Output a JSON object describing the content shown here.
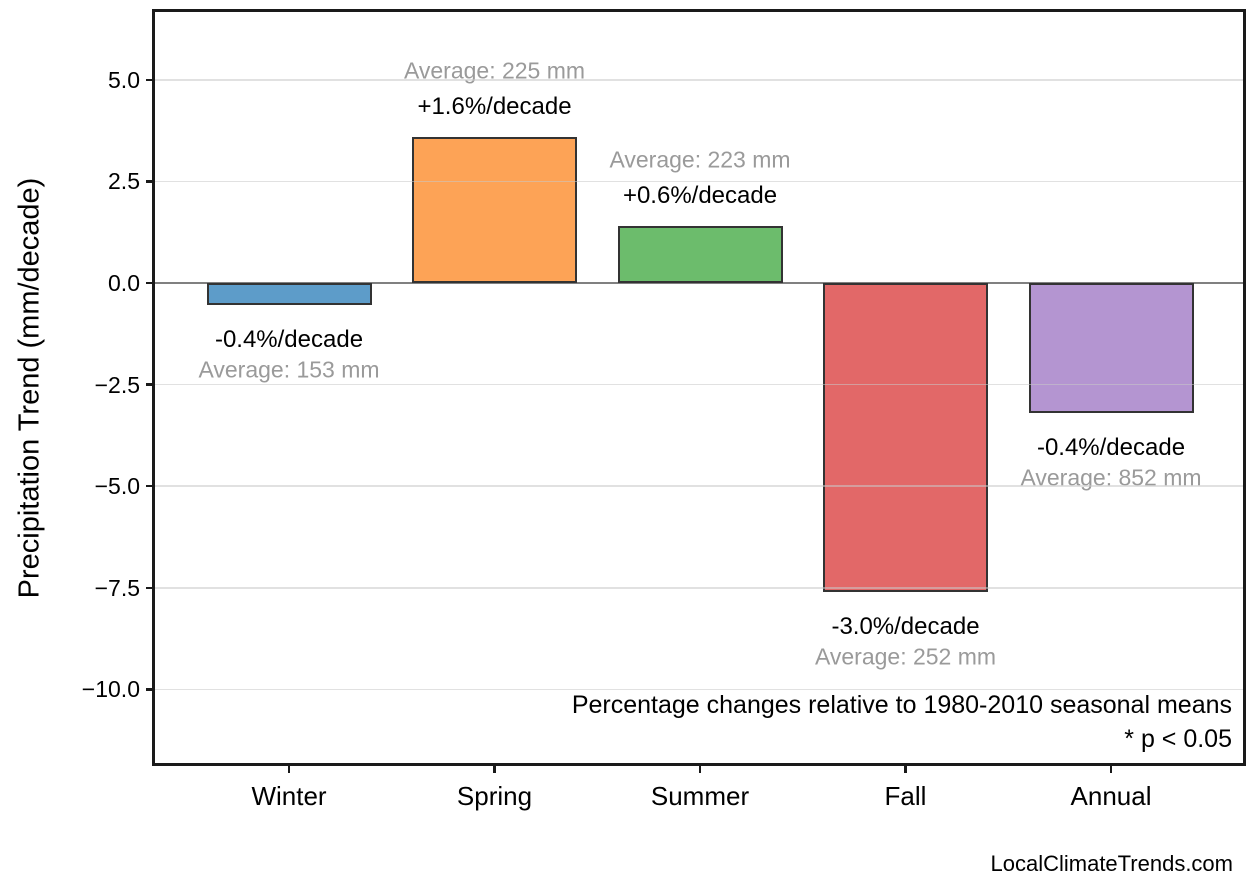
{
  "page": {
    "background": "#ffffff",
    "footer": "LocalClimateTrends.com"
  },
  "chart_data": {
    "type": "bar",
    "title": "",
    "xlabel": "",
    "ylabel": "Precipitation Trend (mm/decade)",
    "units": "mm/decade",
    "categories": [
      "Winter",
      "Spring",
      "Summer",
      "Fall",
      "Annual"
    ],
    "values": [
      -0.55,
      3.6,
      1.4,
      -7.6,
      -3.2
    ],
    "ylim": [
      -11.8,
      6.7
    ],
    "yticks": [
      5.0,
      2.5,
      0.0,
      -2.5,
      -5.0,
      -7.5,
      -10.0
    ],
    "ytick_labels": [
      "5.0",
      "2.5",
      "0.0",
      "−2.5",
      "−5.0",
      "−7.5",
      "−10.0"
    ],
    "grid": true,
    "legend": "none",
    "bars": [
      {
        "category": "Winter",
        "value": -0.55,
        "pct_label": "-0.4%/decade",
        "avg_label": "Average: 153 mm",
        "average_mm": 153,
        "color": "#5d9cc9"
      },
      {
        "category": "Spring",
        "value": 3.6,
        "pct_label": "+1.6%/decade",
        "avg_label": "Average: 225 mm",
        "average_mm": 225,
        "color": "#fda356"
      },
      {
        "category": "Summer",
        "value": 1.4,
        "pct_label": "+0.6%/decade",
        "avg_label": "Average: 223 mm",
        "average_mm": 223,
        "color": "#6cbc6c"
      },
      {
        "category": "Fall",
        "value": -7.6,
        "pct_label": "-3.0%/decade",
        "avg_label": "Average: 252 mm",
        "average_mm": 252,
        "color": "#e26868"
      },
      {
        "category": "Annual",
        "value": -3.2,
        "pct_label": "-0.4%/decade",
        "avg_label": "Average: 852 mm",
        "average_mm": 852,
        "color": "#b495d1"
      }
    ],
    "annotations": [
      "Percentage changes relative to 1980-2010 seasonal means",
      "* p < 0.05"
    ],
    "colors": {
      "bar_edge": "#333333",
      "zero_line": "#808080",
      "gridline": "rgba(200,200,200,0.55)",
      "frame": "#1a1a1a",
      "pct_label_text": "#000000",
      "avg_label_text": "#9a9a9a"
    }
  }
}
